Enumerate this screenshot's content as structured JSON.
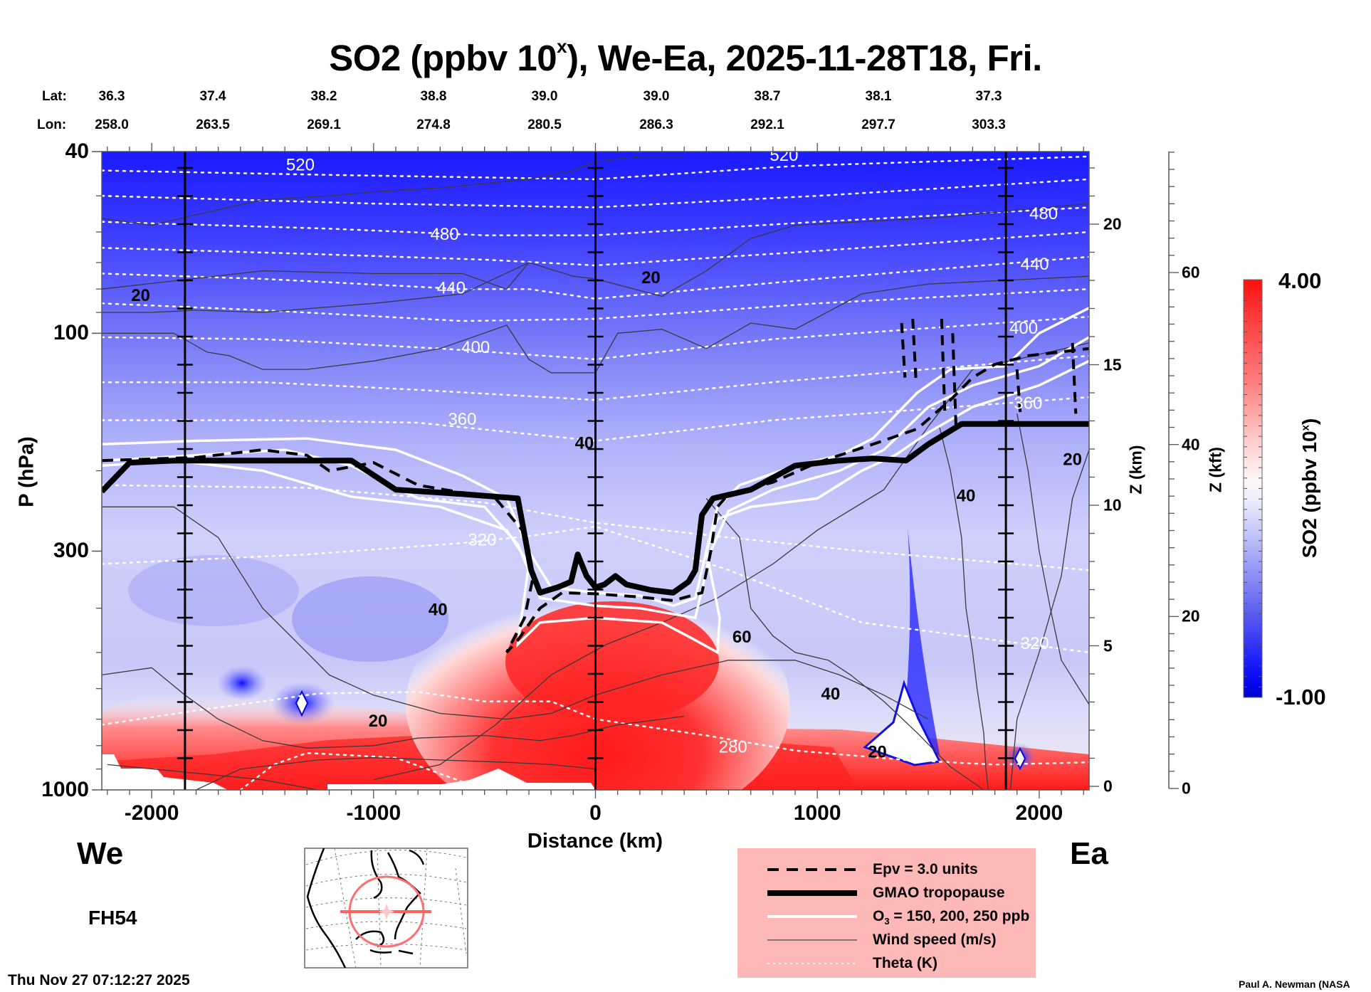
{
  "chart_data": {
    "type": "heatmap",
    "title": "SO2 (ppbv 10",
    "title_superscript": "x",
    "title_suffix": "), We-Ea, 2025-11-28T18, Fri.",
    "xlabel": "Distance (km)",
    "ylabel": "P (hPa)",
    "xlim": [
      -2225,
      2225
    ],
    "ylim_hpa": [
      1000,
      40
    ],
    "y_scale": "log",
    "x_ticks": [
      -2000,
      -1000,
      0,
      1000,
      2000
    ],
    "x_minor_step_km": 100,
    "y_ticks_hpa": [
      40,
      100,
      300,
      1000
    ],
    "y_minor_ticks_hpa": [
      50,
      60,
      70,
      80,
      90,
      200,
      400,
      500,
      600,
      700,
      800,
      900
    ],
    "right_axis_km": {
      "label": "Z (km)",
      "ticks": [
        0,
        5,
        10,
        15,
        20
      ],
      "range": [
        0,
        23
      ]
    },
    "right_axis_kft": {
      "label": "Z (kft)",
      "ticks": [
        0,
        20,
        40,
        60
      ],
      "range": [
        0,
        76
      ],
      "minor_step": 4
    },
    "lat_label": "Lat:",
    "lon_label": "Lon:",
    "lat_values": [
      "36.3",
      "37.4",
      "38.2",
      "38.8",
      "39.0",
      "39.0",
      "38.7",
      "38.1",
      "37.3"
    ],
    "lon_values": [
      "258.0",
      "263.5",
      "269.1",
      "274.8",
      "280.5",
      "286.3",
      "292.1",
      "297.7",
      "303.3"
    ],
    "marker_lines_km": [
      -1850,
      0,
      1850
    ],
    "colorbar": {
      "label": "SO2 (ppbv 10",
      "label_superscript": "x",
      "label_suffix": ")",
      "min": -1.0,
      "max": 4.0,
      "min_label": "-1.00",
      "max_label": "4.00",
      "levels": 40,
      "low_color": "#0000c8",
      "mid_color": "#ffffff",
      "high_color": "#ff0000"
    },
    "series": [
      {
        "name": "Theta (K)",
        "style": "dotted-white",
        "labels": [
          {
            "text": "520",
            "x_km": -1330,
            "p": 43
          },
          {
            "text": "520",
            "x_km": 850,
            "p": 41
          },
          {
            "text": "480",
            "x_km": -680,
            "p": 61
          },
          {
            "text": "480",
            "x_km": 2020,
            "p": 55
          },
          {
            "text": "440",
            "x_km": -650,
            "p": 80
          },
          {
            "text": "440",
            "x_km": 1980,
            "p": 71
          },
          {
            "text": "400",
            "x_km": -540,
            "p": 108
          },
          {
            "text": "400",
            "x_km": 1930,
            "p": 98
          },
          {
            "text": "360",
            "x_km": -600,
            "p": 155
          },
          {
            "text": "360",
            "x_km": 1950,
            "p": 143
          },
          {
            "text": "320",
            "x_km": -510,
            "p": 285
          },
          {
            "text": "320",
            "x_km": 1980,
            "p": 480
          },
          {
            "text": "280",
            "x_km": 620,
            "p": 810
          }
        ],
        "levels_k": [
          280,
          320,
          340,
          360,
          380,
          400,
          420,
          440,
          460,
          480,
          500,
          520
        ]
      },
      {
        "name": "Wind speed (m/s)",
        "style": "thin-black",
        "labels": [
          {
            "text": "20",
            "x_km": -2050,
            "p": 83
          },
          {
            "text": "20",
            "x_km": 250,
            "p": 76
          },
          {
            "text": "40",
            "x_km": -50,
            "p": 175
          },
          {
            "text": "40",
            "x_km": -710,
            "p": 405
          },
          {
            "text": "60",
            "x_km": 660,
            "p": 465
          },
          {
            "text": "40",
            "x_km": 1060,
            "p": 620
          },
          {
            "text": "40",
            "x_km": 1670,
            "p": 228
          },
          {
            "text": "20",
            "x_km": 2150,
            "p": 190
          },
          {
            "text": "20",
            "x_km": -980,
            "p": 710
          },
          {
            "text": "20",
            "x_km": 1270,
            "p": 830
          }
        ]
      },
      {
        "name": "GMAO tropopause",
        "style": "thick-black",
        "points": [
          [
            -2225,
            222
          ],
          [
            -2100,
            192
          ],
          [
            -1900,
            190
          ],
          [
            -1350,
            190
          ],
          [
            -1100,
            190
          ],
          [
            -900,
            220
          ],
          [
            -600,
            225
          ],
          [
            -350,
            230
          ],
          [
            -290,
            330
          ],
          [
            -250,
            370
          ],
          [
            -170,
            360
          ],
          [
            -110,
            350
          ],
          [
            -80,
            305
          ],
          [
            -40,
            340
          ],
          [
            0,
            360
          ],
          [
            40,
            355
          ],
          [
            90,
            340
          ],
          [
            140,
            355
          ],
          [
            250,
            365
          ],
          [
            350,
            370
          ],
          [
            420,
            350
          ],
          [
            450,
            330
          ],
          [
            480,
            250
          ],
          [
            530,
            230
          ],
          [
            700,
            220
          ],
          [
            900,
            195
          ],
          [
            1100,
            190
          ],
          [
            1250,
            188
          ],
          [
            1400,
            190
          ],
          [
            1500,
            175
          ],
          [
            1650,
            158
          ],
          [
            2225,
            158
          ]
        ]
      },
      {
        "name": "Epv = 3.0 units",
        "style": "dashed-black",
        "points": [
          [
            -2225,
            190
          ],
          [
            -1800,
            187
          ],
          [
            -1500,
            180
          ],
          [
            -1300,
            185
          ],
          [
            -1200,
            200
          ],
          [
            -1000,
            192
          ],
          [
            -800,
            215
          ],
          [
            -450,
            230
          ],
          [
            -330,
            270
          ],
          [
            -280,
            340
          ],
          [
            -320,
            420
          ],
          [
            -400,
            500
          ],
          [
            -350,
            470
          ],
          [
            -250,
            400
          ],
          [
            -150,
            370
          ],
          [
            0,
            372
          ],
          [
            200,
            378
          ],
          [
            350,
            385
          ],
          [
            480,
            370
          ],
          [
            520,
            300
          ],
          [
            550,
            240
          ],
          [
            600,
            225
          ],
          [
            800,
            212
          ],
          [
            1000,
            192
          ],
          [
            1250,
            175
          ],
          [
            1450,
            162
          ],
          [
            1600,
            140
          ],
          [
            1700,
            125
          ],
          [
            1800,
            117
          ],
          [
            1950,
            112
          ],
          [
            2225,
            108
          ]
        ]
      },
      {
        "name": "O3 = 150, 200, 250 ppb",
        "style": "white",
        "values_ppb": [
          150,
          200,
          250
        ]
      }
    ]
  },
  "labels": {
    "west": "We",
    "east": "Ea",
    "forecast_hour": "FH54",
    "timestamp": "Thu Nov 27 07:12:27 2025",
    "credit": "Paul A. Newman (NASA"
  },
  "legend": {
    "items": [
      {
        "style": "dashed-black",
        "text": "Epv = 3.0 units"
      },
      {
        "style": "thick-black",
        "text": "GMAO tropopause"
      },
      {
        "style": "white",
        "text_pre": "O",
        "text_sub": "3",
        "text_post": " = 150, 200, 250 ppb"
      },
      {
        "style": "thin-black",
        "text": "Wind speed (m/s)"
      },
      {
        "style": "dotted-white",
        "text": "Theta (K)"
      }
    ],
    "background": "#ffb8b8"
  },
  "inset_map": {
    "description": "North America locator map",
    "circle_color": "#ff7777",
    "section_line_color": "#ff6666"
  }
}
